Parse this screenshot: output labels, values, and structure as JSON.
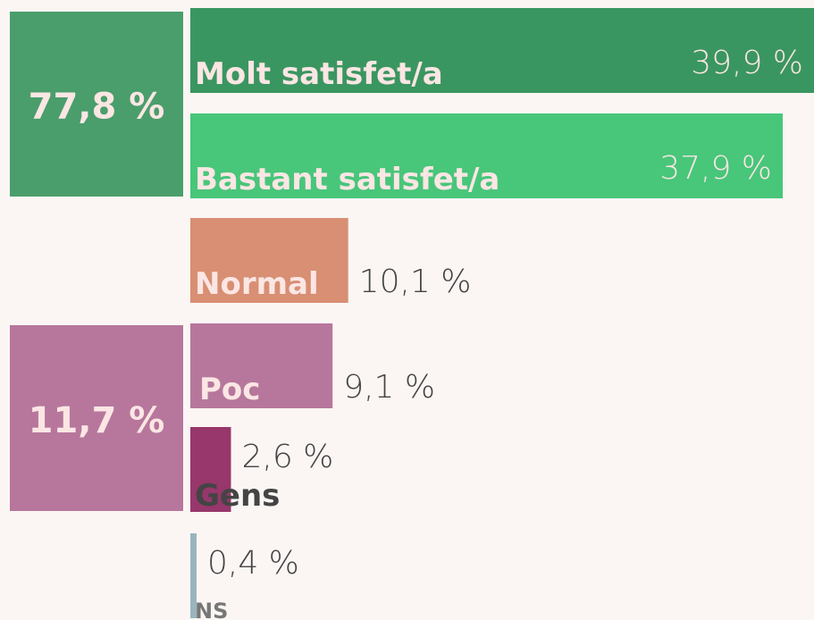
{
  "chart_data": {
    "type": "bar",
    "categories": [
      "Molt satisfet/a",
      "Bastant satisfet/a",
      "Normal",
      "Poc",
      "Gens",
      "NS"
    ],
    "values": [
      39.9,
      37.9,
      10.1,
      9.1,
      2.6,
      0.4
    ],
    "value_labels": [
      "39,9 %",
      "37,9 %",
      "10,1 %",
      "9,1 %",
      "2,6 %",
      "0,4 %"
    ],
    "colors": [
      "#3a9660",
      "#48c67a",
      "#d88f73",
      "#b7779c",
      "#97376b",
      "#9ab4be"
    ],
    "groups": [
      {
        "value": 77.8,
        "label": "77,8 %",
        "color": "#4a9e6b"
      },
      {
        "value": 11.7,
        "label": "11,7 %",
        "color": "#b7779c"
      }
    ]
  }
}
